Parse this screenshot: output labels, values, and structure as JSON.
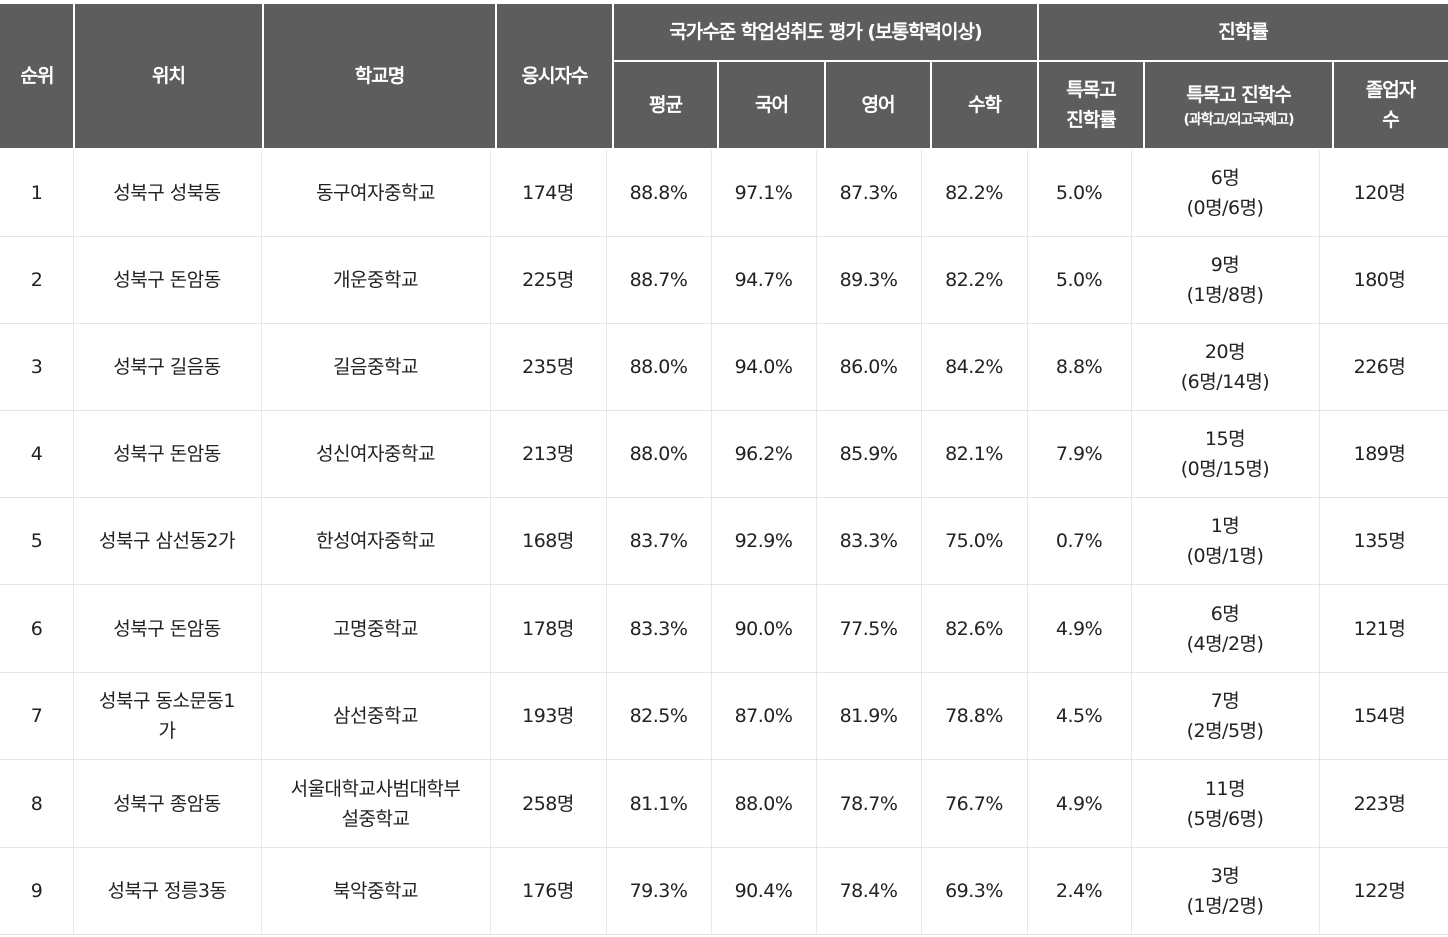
{
  "header": {
    "rank": "순위",
    "location": "위치",
    "school": "학교명",
    "test_takers": "응시자수",
    "achievement_group": "국가수준 학업성취도 평가 (보통학력이상)",
    "average": "평균",
    "korean": "국어",
    "english": "영어",
    "math": "수학",
    "advancement_group": "진학률",
    "special_rate_line1": "특목고",
    "special_rate_line2": "진학률",
    "special_count_line1": "특목고 진학수",
    "special_count_line2": "(과학고/외고국제고)",
    "graduates_line1": "졸업자",
    "graduates_line2": "수"
  },
  "rows": [
    {
      "rank": "1",
      "location": "성북구 성북동",
      "school": "동구여자중학교",
      "test_takers": "174명",
      "average": "88.8%",
      "korean": "97.1%",
      "english": "87.3%",
      "math": "82.2%",
      "special_rate": "5.0%",
      "special_count": "6명",
      "special_breakdown": "(0명/6명)",
      "graduates": "120명"
    },
    {
      "rank": "2",
      "location": "성북구 돈암동",
      "school": "개운중학교",
      "test_takers": "225명",
      "average": "88.7%",
      "korean": "94.7%",
      "english": "89.3%",
      "math": "82.2%",
      "special_rate": "5.0%",
      "special_count": "9명",
      "special_breakdown": "(1명/8명)",
      "graduates": "180명"
    },
    {
      "rank": "3",
      "location": "성북구 길음동",
      "school": "길음중학교",
      "test_takers": "235명",
      "average": "88.0%",
      "korean": "94.0%",
      "english": "86.0%",
      "math": "84.2%",
      "special_rate": "8.8%",
      "special_count": "20명",
      "special_breakdown": "(6명/14명)",
      "graduates": "226명"
    },
    {
      "rank": "4",
      "location": "성북구 돈암동",
      "school": "성신여자중학교",
      "test_takers": "213명",
      "average": "88.0%",
      "korean": "96.2%",
      "english": "85.9%",
      "math": "82.1%",
      "special_rate": "7.9%",
      "special_count": "15명",
      "special_breakdown": "(0명/15명)",
      "graduates": "189명"
    },
    {
      "rank": "5",
      "location": "성북구 삼선동2가",
      "school": "한성여자중학교",
      "test_takers": "168명",
      "average": "83.7%",
      "korean": "92.9%",
      "english": "83.3%",
      "math": "75.0%",
      "special_rate": "0.7%",
      "special_count": "1명",
      "special_breakdown": "(0명/1명)",
      "graduates": "135명"
    },
    {
      "rank": "6",
      "location": "성북구 돈암동",
      "school": "고명중학교",
      "test_takers": "178명",
      "average": "83.3%",
      "korean": "90.0%",
      "english": "77.5%",
      "math": "82.6%",
      "special_rate": "4.9%",
      "special_count": "6명",
      "special_breakdown": "(4명/2명)",
      "graduates": "121명"
    },
    {
      "rank": "7",
      "location": "성북구 동소문동1가",
      "location_line1": "성북구 동소문동1",
      "location_line2": "가",
      "school": "삼선중학교",
      "test_takers": "193명",
      "average": "82.5%",
      "korean": "87.0%",
      "english": "81.9%",
      "math": "78.8%",
      "special_rate": "4.5%",
      "special_count": "7명",
      "special_breakdown": "(2명/5명)",
      "graduates": "154명"
    },
    {
      "rank": "8",
      "location": "성북구 종암동",
      "school": "서울대학교사범대학부설중학교",
      "school_line1": "서울대학교사범대학부",
      "school_line2": "설중학교",
      "test_takers": "258명",
      "average": "81.1%",
      "korean": "88.0%",
      "english": "78.7%",
      "math": "76.7%",
      "special_rate": "4.9%",
      "special_count": "11명",
      "special_breakdown": "(5명/6명)",
      "graduates": "223명"
    },
    {
      "rank": "9",
      "location": "성북구 정릉3동",
      "school": "북악중학교",
      "test_takers": "176명",
      "average": "79.3%",
      "korean": "90.4%",
      "english": "78.4%",
      "math": "69.3%",
      "special_rate": "2.4%",
      "special_count": "3명",
      "special_breakdown": "(1명/2명)",
      "graduates": "122명"
    }
  ]
}
